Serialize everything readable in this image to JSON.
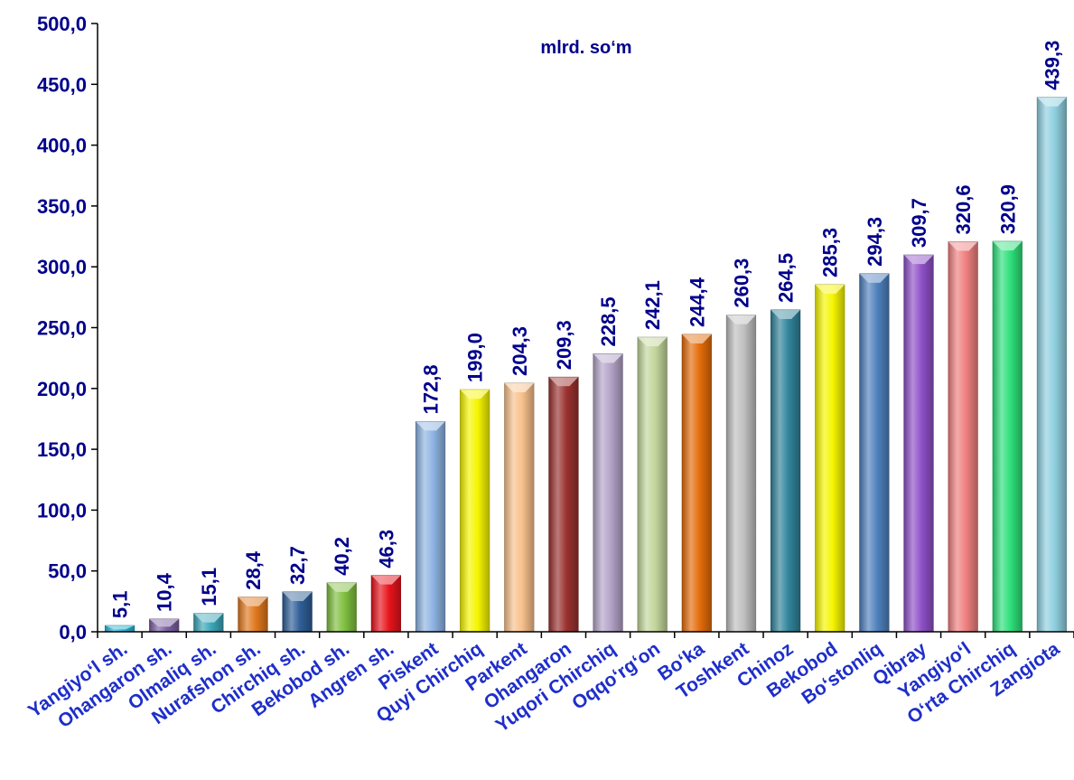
{
  "chart_data": {
    "type": "bar",
    "title": "",
    "unit_label": "mlrd. so‘m",
    "xlabel": "",
    "ylabel": "",
    "ylim": [
      0,
      500
    ],
    "yticks": [
      0,
      50,
      100,
      150,
      200,
      250,
      300,
      350,
      400,
      450,
      500
    ],
    "ytick_labels": [
      "0,0",
      "50,0",
      "100,0",
      "150,0",
      "200,0",
      "250,0",
      "300,0",
      "350,0",
      "400,0",
      "450,0",
      "500,0"
    ],
    "grid": false,
    "categories": [
      "Yangiyo‘l sh.",
      "Ohangaron sh.",
      "Olmaliq sh.",
      "Nurafshon sh.",
      "Chirchiq sh.",
      "Bekobod sh.",
      "Angren sh.",
      "Piskent",
      "Quyi Chirchiq",
      "Parkent",
      "Ohangaron",
      "Yuqori Chirchiq",
      "Oqqo‘rg‘on",
      "Bo‘ka",
      "Toshkent",
      "Chinoz",
      "Bekobod",
      "Bo‘stonliq",
      "Qibray",
      "Yangiyo‘l",
      "O‘rta Chirchiq",
      "Zangiota"
    ],
    "values": [
      5.1,
      10.4,
      15.1,
      28.4,
      32.7,
      40.2,
      46.3,
      172.8,
      199.0,
      204.3,
      209.3,
      228.5,
      242.1,
      244.4,
      260.3,
      264.5,
      285.3,
      294.3,
      309.7,
      320.6,
      320.9,
      439.3
    ],
    "value_labels": [
      "5,1",
      "10,4",
      "15,1",
      "28,4",
      "32,7",
      "40,2",
      "46,3",
      "172,8",
      "199,0",
      "204,3",
      "209,3",
      "228,5",
      "242,1",
      "244,4",
      "260,3",
      "264,5",
      "285,3",
      "294,3",
      "309,7",
      "320,6",
      "320,9",
      "439,3"
    ],
    "colors": [
      "#2bb6d8",
      "#7a5fa0",
      "#3aa6b8",
      "#e0781e",
      "#2e5e96",
      "#7fbf3f",
      "#e8141c",
      "#8db3e2",
      "#f5f500",
      "#f8c08c",
      "#9a3230",
      "#b3a2c7",
      "#c3d69b",
      "#e46c0a",
      "#bfbfbf",
      "#31849b",
      "#f5f500",
      "#4f81bd",
      "#8e50c8",
      "#f08080",
      "#2ee07a",
      "#8fcfe0"
    ]
  }
}
